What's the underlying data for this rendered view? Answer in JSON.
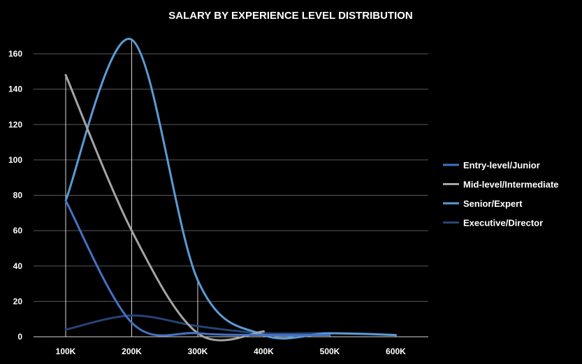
{
  "chart_data": {
    "type": "line",
    "title": "SALARY BY EXPERIENCE LEVEL DISTRIBUTION",
    "xlabel": "",
    "ylabel": "",
    "categories": [
      "100K",
      "200K",
      "300K",
      "400K",
      "500K",
      "600K"
    ],
    "ylim": [
      0,
      160
    ],
    "yticks": [
      0,
      20,
      40,
      60,
      80,
      100,
      120,
      140,
      160
    ],
    "grid": true,
    "legend_position": "right",
    "series": [
      {
        "name": "Entry-level/Junior",
        "color": "#4472C4",
        "values": [
          77,
          8,
          2,
          1,
          1,
          null
        ]
      },
      {
        "name": "Mid-level/Intermediate",
        "color": "#A5A5A5",
        "values": [
          148,
          60,
          2,
          3,
          null,
          null
        ]
      },
      {
        "name": "Senior/Expert",
        "color": "#5B9BD5",
        "values": [
          77,
          168,
          32,
          1,
          2,
          1
        ]
      },
      {
        "name": "Executive/Director",
        "color": "#264478",
        "values": [
          4,
          12,
          6,
          2,
          2,
          1
        ]
      }
    ]
  }
}
